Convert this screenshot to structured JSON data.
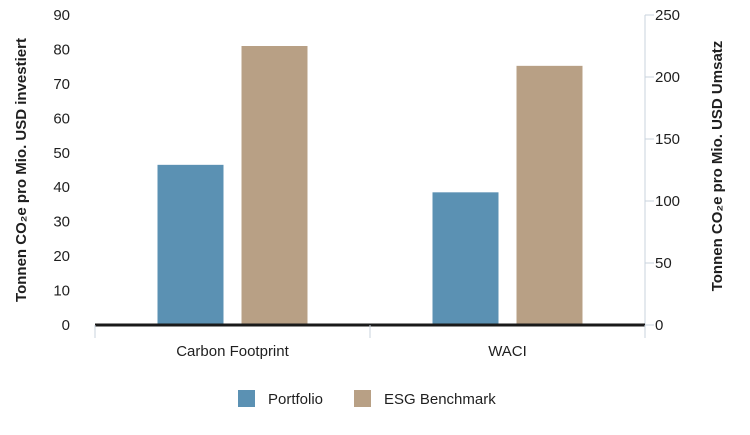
{
  "chart_data": {
    "type": "bar",
    "categories": [
      "Carbon Footprint",
      "WACI"
    ],
    "series": [
      {
        "name": "Portfolio",
        "color": "#5b91b3",
        "axis": "left",
        "values": [
          46.5,
          null
        ]
      },
      {
        "name": "ESG Benchmark",
        "color": "#b8a085",
        "axis": "left",
        "values": [
          81,
          null
        ]
      },
      {
        "name": "Portfolio",
        "color": "#5b91b3",
        "axis": "right",
        "values": [
          null,
          107
        ]
      },
      {
        "name": "ESG Benchmark",
        "color": "#b8a085",
        "axis": "right",
        "values": [
          null,
          209
        ]
      }
    ],
    "legend": [
      {
        "name": "Portfolio",
        "color": "#5b91b3"
      },
      {
        "name": "ESG Benchmark",
        "color": "#b8a085"
      }
    ],
    "ylabel": "Tonnen CO₂e pro Mio. USD investiert",
    "y2label": "Tonnen CO₂e pro Mio. USD Umsatz",
    "ylim": [
      0,
      90
    ],
    "y2lim": [
      0,
      250
    ],
    "yticks": [
      "0",
      "10",
      "20",
      "30",
      "40",
      "50",
      "60",
      "70",
      "80",
      "90"
    ],
    "y2ticks": [
      "0",
      "50",
      "100",
      "150",
      "200",
      "250"
    ],
    "grid": false,
    "legend_position": "bottom"
  }
}
